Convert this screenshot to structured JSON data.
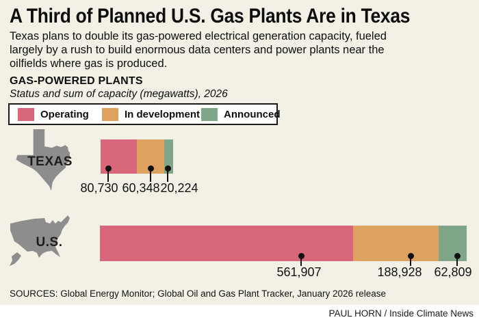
{
  "title": "A Third of Planned U.S. Gas Plants Are in Texas",
  "subtitle": "Texas plans to double its gas-powered electrical generation capacity, fueled largely by a rush to build enormous data centers and power plants near the oilfields where gas is produced.",
  "section": {
    "heading": "GAS-POWERED PLANTS",
    "subheading": "Status and sum of capacity (megawatts), 2026"
  },
  "legend": [
    {
      "label": "Operating",
      "color": "#d8677c"
    },
    {
      "label": "In development",
      "color": "#dea15f"
    },
    {
      "label": "Announced",
      "color": "#80a689"
    }
  ],
  "colors": {
    "background": "#f3f0e6",
    "map_gray": "#8d8d8d",
    "operating": "#d8677c",
    "in_development": "#dea15f",
    "announced": "#80a689",
    "credit_strip": "#ffffff"
  },
  "chart_data": {
    "type": "bar",
    "orientation": "horizontal",
    "stacked": true,
    "title": "GAS-POWERED PLANTS",
    "subtitle": "Status and sum of capacity (megawatts), 2026",
    "unit": "megawatts",
    "year": "2026",
    "legend_position": "top",
    "categories": [
      "TEXAS",
      "U.S."
    ],
    "series": [
      {
        "name": "Operating",
        "color": "#d8677c",
        "values": [
          80730,
          561907
        ],
        "labels": [
          "80,730",
          "561,907"
        ]
      },
      {
        "name": "In development",
        "color": "#dea15f",
        "values": [
          60348,
          188928
        ],
        "labels": [
          "60,348",
          "188,928"
        ]
      },
      {
        "name": "Announced",
        "color": "#80a689",
        "values": [
          20224,
          62809
        ],
        "labels": [
          "20,224",
          "62,809"
        ]
      }
    ]
  },
  "sources": "SOURCES: Global Energy Monitor; Global Oil and Gas Plant Tracker, January 2026 release",
  "credit": "PAUL HORN / Inside Climate News"
}
